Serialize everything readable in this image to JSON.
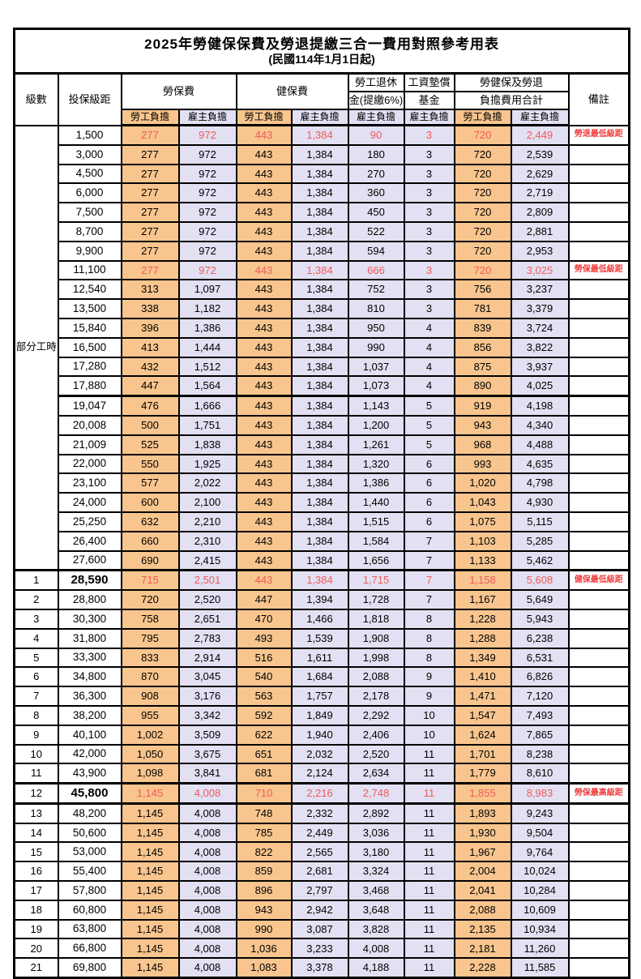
{
  "title": {
    "main": "2025年勞健保保費及勞退提繳三合一費用對照參考用表",
    "sub": "(民國114年1月1日起)"
  },
  "columns": {
    "level": "級數",
    "bracket": "投保級距",
    "labor": "勞保費",
    "health": "健保費",
    "pension_l1": "勞工退休",
    "pension_l2": "金(提繳6%)",
    "fund_l1": "工資墊償",
    "fund_l2": "基金",
    "total_l1": "勞健保及勞退",
    "total_l2": "負擔費用合計",
    "remark": "備註",
    "employee": "勞工負擔",
    "employer": "雇主負擔"
  },
  "section_label": "部分工時",
  "part_time_rowspan": 23,
  "colors": {
    "employee_bg": "#F8C58E",
    "employer_bg": "#E2E0F2",
    "highlight_text": "#F05A5A",
    "remark_text": "#F03C3C"
  },
  "rows": [
    {
      "level": "",
      "bracket": "1,500",
      "values": [
        "277",
        "972",
        "443",
        "1,384",
        "90",
        "3",
        "720",
        "2,449"
      ],
      "remark": "勞退最低級距",
      "red": true
    },
    {
      "level": "",
      "bracket": "3,000",
      "values": [
        "277",
        "972",
        "443",
        "1,384",
        "180",
        "3",
        "720",
        "2,539"
      ],
      "remark": ""
    },
    {
      "level": "",
      "bracket": "4,500",
      "values": [
        "277",
        "972",
        "443",
        "1,384",
        "270",
        "3",
        "720",
        "2,629"
      ],
      "remark": ""
    },
    {
      "level": "",
      "bracket": "6,000",
      "values": [
        "277",
        "972",
        "443",
        "1,384",
        "360",
        "3",
        "720",
        "2,719"
      ],
      "remark": ""
    },
    {
      "level": "",
      "bracket": "7,500",
      "values": [
        "277",
        "972",
        "443",
        "1,384",
        "450",
        "3",
        "720",
        "2,809"
      ],
      "remark": ""
    },
    {
      "level": "",
      "bracket": "8,700",
      "values": [
        "277",
        "972",
        "443",
        "1,384",
        "522",
        "3",
        "720",
        "2,881"
      ],
      "remark": ""
    },
    {
      "level": "",
      "bracket": "9,900",
      "values": [
        "277",
        "972",
        "443",
        "1,384",
        "594",
        "3",
        "720",
        "2,953"
      ],
      "remark": ""
    },
    {
      "level": "",
      "bracket": "11,100",
      "values": [
        "277",
        "972",
        "443",
        "1,384",
        "666",
        "3",
        "720",
        "3,025"
      ],
      "remark": "勞保最低級距",
      "red": true
    },
    {
      "level": "",
      "bracket": "12,540",
      "values": [
        "313",
        "1,097",
        "443",
        "1,384",
        "752",
        "3",
        "756",
        "3,237"
      ],
      "remark": ""
    },
    {
      "level": "",
      "bracket": "13,500",
      "values": [
        "338",
        "1,182",
        "443",
        "1,384",
        "810",
        "3",
        "781",
        "3,379"
      ],
      "remark": ""
    },
    {
      "level": "",
      "bracket": "15,840",
      "values": [
        "396",
        "1,386",
        "443",
        "1,384",
        "950",
        "4",
        "839",
        "3,724"
      ],
      "remark": ""
    },
    {
      "level": "",
      "bracket": "16,500",
      "values": [
        "413",
        "1,444",
        "443",
        "1,384",
        "990",
        "4",
        "856",
        "3,822"
      ],
      "remark": ""
    },
    {
      "level": "",
      "bracket": "17,280",
      "values": [
        "432",
        "1,512",
        "443",
        "1,384",
        "1,037",
        "4",
        "875",
        "3,937"
      ],
      "remark": ""
    },
    {
      "level": "",
      "bracket": "17,880",
      "values": [
        "447",
        "1,564",
        "443",
        "1,384",
        "1,073",
        "4",
        "890",
        "4,025"
      ],
      "remark": ""
    },
    {
      "level": "",
      "bracket": "19,047",
      "values": [
        "476",
        "1,666",
        "443",
        "1,384",
        "1,143",
        "5",
        "919",
        "4,198"
      ],
      "remark": "",
      "thick_top": true
    },
    {
      "level": "",
      "bracket": "20,008",
      "values": [
        "500",
        "1,751",
        "443",
        "1,384",
        "1,200",
        "5",
        "943",
        "4,340"
      ],
      "remark": ""
    },
    {
      "level": "",
      "bracket": "21,009",
      "values": [
        "525",
        "1,838",
        "443",
        "1,384",
        "1,261",
        "5",
        "968",
        "4,488"
      ],
      "remark": ""
    },
    {
      "level": "",
      "bracket": "22,000",
      "values": [
        "550",
        "1,925",
        "443",
        "1,384",
        "1,320",
        "6",
        "993",
        "4,635"
      ],
      "remark": ""
    },
    {
      "level": "",
      "bracket": "23,100",
      "values": [
        "577",
        "2,022",
        "443",
        "1,384",
        "1,386",
        "6",
        "1,020",
        "4,798"
      ],
      "remark": ""
    },
    {
      "level": "",
      "bracket": "24,000",
      "values": [
        "600",
        "2,100",
        "443",
        "1,384",
        "1,440",
        "6",
        "1,043",
        "4,930"
      ],
      "remark": ""
    },
    {
      "level": "",
      "bracket": "25,250",
      "values": [
        "632",
        "2,210",
        "443",
        "1,384",
        "1,515",
        "6",
        "1,075",
        "5,115"
      ],
      "remark": ""
    },
    {
      "level": "",
      "bracket": "26,400",
      "values": [
        "660",
        "2,310",
        "443",
        "1,384",
        "1,584",
        "7",
        "1,103",
        "5,285"
      ],
      "remark": ""
    },
    {
      "level": "",
      "bracket": "27,600",
      "values": [
        "690",
        "2,415",
        "443",
        "1,384",
        "1,656",
        "7",
        "1,133",
        "5,462"
      ],
      "remark": ""
    },
    {
      "level": "1",
      "bracket": "28,590",
      "values": [
        "715",
        "2,501",
        "443",
        "1,384",
        "1,715",
        "7",
        "1,158",
        "5,608"
      ],
      "remark": "健保最低級距",
      "red": true,
      "bold": true,
      "thick_top": true
    },
    {
      "level": "2",
      "bracket": "28,800",
      "values": [
        "720",
        "2,520",
        "447",
        "1,394",
        "1,728",
        "7",
        "1,167",
        "5,649"
      ],
      "remark": ""
    },
    {
      "level": "3",
      "bracket": "30,300",
      "values": [
        "758",
        "2,651",
        "470",
        "1,466",
        "1,818",
        "8",
        "1,228",
        "5,943"
      ],
      "remark": ""
    },
    {
      "level": "4",
      "bracket": "31,800",
      "values": [
        "795",
        "2,783",
        "493",
        "1,539",
        "1,908",
        "8",
        "1,288",
        "6,238"
      ],
      "remark": ""
    },
    {
      "level": "5",
      "bracket": "33,300",
      "values": [
        "833",
        "2,914",
        "516",
        "1,611",
        "1,998",
        "8",
        "1,349",
        "6,531"
      ],
      "remark": ""
    },
    {
      "level": "6",
      "bracket": "34,800",
      "values": [
        "870",
        "3,045",
        "540",
        "1,684",
        "2,088",
        "9",
        "1,410",
        "6,826"
      ],
      "remark": ""
    },
    {
      "level": "7",
      "bracket": "36,300",
      "values": [
        "908",
        "3,176",
        "563",
        "1,757",
        "2,178",
        "9",
        "1,471",
        "7,120"
      ],
      "remark": ""
    },
    {
      "level": "8",
      "bracket": "38,200",
      "values": [
        "955",
        "3,342",
        "592",
        "1,849",
        "2,292",
        "10",
        "1,547",
        "7,493"
      ],
      "remark": ""
    },
    {
      "level": "9",
      "bracket": "40,100",
      "values": [
        "1,002",
        "3,509",
        "622",
        "1,940",
        "2,406",
        "10",
        "1,624",
        "7,865"
      ],
      "remark": ""
    },
    {
      "level": "10",
      "bracket": "42,000",
      "values": [
        "1,050",
        "3,675",
        "651",
        "2,032",
        "2,520",
        "11",
        "1,701",
        "8,238"
      ],
      "remark": ""
    },
    {
      "level": "11",
      "bracket": "43,900",
      "values": [
        "1,098",
        "3,841",
        "681",
        "2,124",
        "2,634",
        "11",
        "1,779",
        "8,610"
      ],
      "remark": ""
    },
    {
      "level": "12",
      "bracket": "45,800",
      "values": [
        "1,145",
        "4,008",
        "710",
        "2,216",
        "2,748",
        "11",
        "1,855",
        "8,983"
      ],
      "remark": "勞保最高級距",
      "red": true,
      "bold": true,
      "thick_top": true,
      "thick_bottom": true
    },
    {
      "level": "13",
      "bracket": "48,200",
      "values": [
        "1,145",
        "4,008",
        "748",
        "2,332",
        "2,892",
        "11",
        "1,893",
        "9,243"
      ],
      "remark": ""
    },
    {
      "level": "14",
      "bracket": "50,600",
      "values": [
        "1,145",
        "4,008",
        "785",
        "2,449",
        "3,036",
        "11",
        "1,930",
        "9,504"
      ],
      "remark": ""
    },
    {
      "level": "15",
      "bracket": "53,000",
      "values": [
        "1,145",
        "4,008",
        "822",
        "2,565",
        "3,180",
        "11",
        "1,967",
        "9,764"
      ],
      "remark": ""
    },
    {
      "level": "16",
      "bracket": "55,400",
      "values": [
        "1,145",
        "4,008",
        "859",
        "2,681",
        "3,324",
        "11",
        "2,004",
        "10,024"
      ],
      "remark": ""
    },
    {
      "level": "17",
      "bracket": "57,800",
      "values": [
        "1,145",
        "4,008",
        "896",
        "2,797",
        "3,468",
        "11",
        "2,041",
        "10,284"
      ],
      "remark": ""
    },
    {
      "level": "18",
      "bracket": "60,800",
      "values": [
        "1,145",
        "4,008",
        "943",
        "2,942",
        "3,648",
        "11",
        "2,088",
        "10,609"
      ],
      "remark": ""
    },
    {
      "level": "19",
      "bracket": "63,800",
      "values": [
        "1,145",
        "4,008",
        "990",
        "3,087",
        "3,828",
        "11",
        "2,135",
        "10,934"
      ],
      "remark": ""
    },
    {
      "level": "20",
      "bracket": "66,800",
      "values": [
        "1,145",
        "4,008",
        "1,036",
        "3,233",
        "4,008",
        "11",
        "2,181",
        "11,260"
      ],
      "remark": ""
    },
    {
      "level": "21",
      "bracket": "69,800",
      "values": [
        "1,145",
        "4,008",
        "1,083",
        "3,378",
        "4,188",
        "11",
        "2,228",
        "11,585"
      ],
      "remark": ""
    }
  ]
}
